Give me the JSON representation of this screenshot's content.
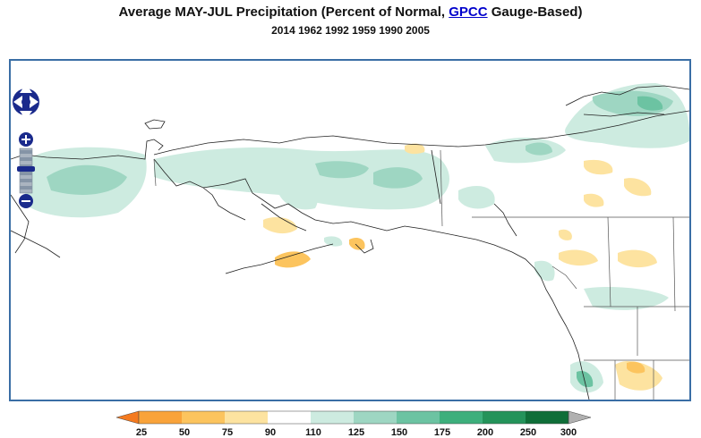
{
  "header": {
    "title_prefix": "Average MAY-JUL Precipitation (Percent of Normal, ",
    "title_link": "GPCC",
    "title_suffix": " Gauge-Based)",
    "subtitle": "2014 1962 1992 1959 1990 2005"
  },
  "map": {
    "controls": {
      "pan_icon": "pan-arrows-icon",
      "zoom_in_icon": "zoom-in-icon",
      "zoom_out_icon": "zoom-out-icon"
    }
  },
  "legend": {
    "labels": [
      "25",
      "50",
      "75",
      "90",
      "110",
      "125",
      "150",
      "175",
      "200",
      "250",
      "300"
    ],
    "colors": {
      "below_25": "#f47a1f",
      "25_50": "#f9a33a",
      "50_75": "#fcc45e",
      "75_90": "#fde3a0",
      "90_110": "#ffffff",
      "110_125": "#cdebe0",
      "125_150": "#9ed6c2",
      "150_175": "#6cc3a2",
      "175_200": "#3daf7c",
      "200_250": "#24935a",
      "250_300": "#0f6e38",
      "above_300": "#b0b0b0"
    }
  }
}
